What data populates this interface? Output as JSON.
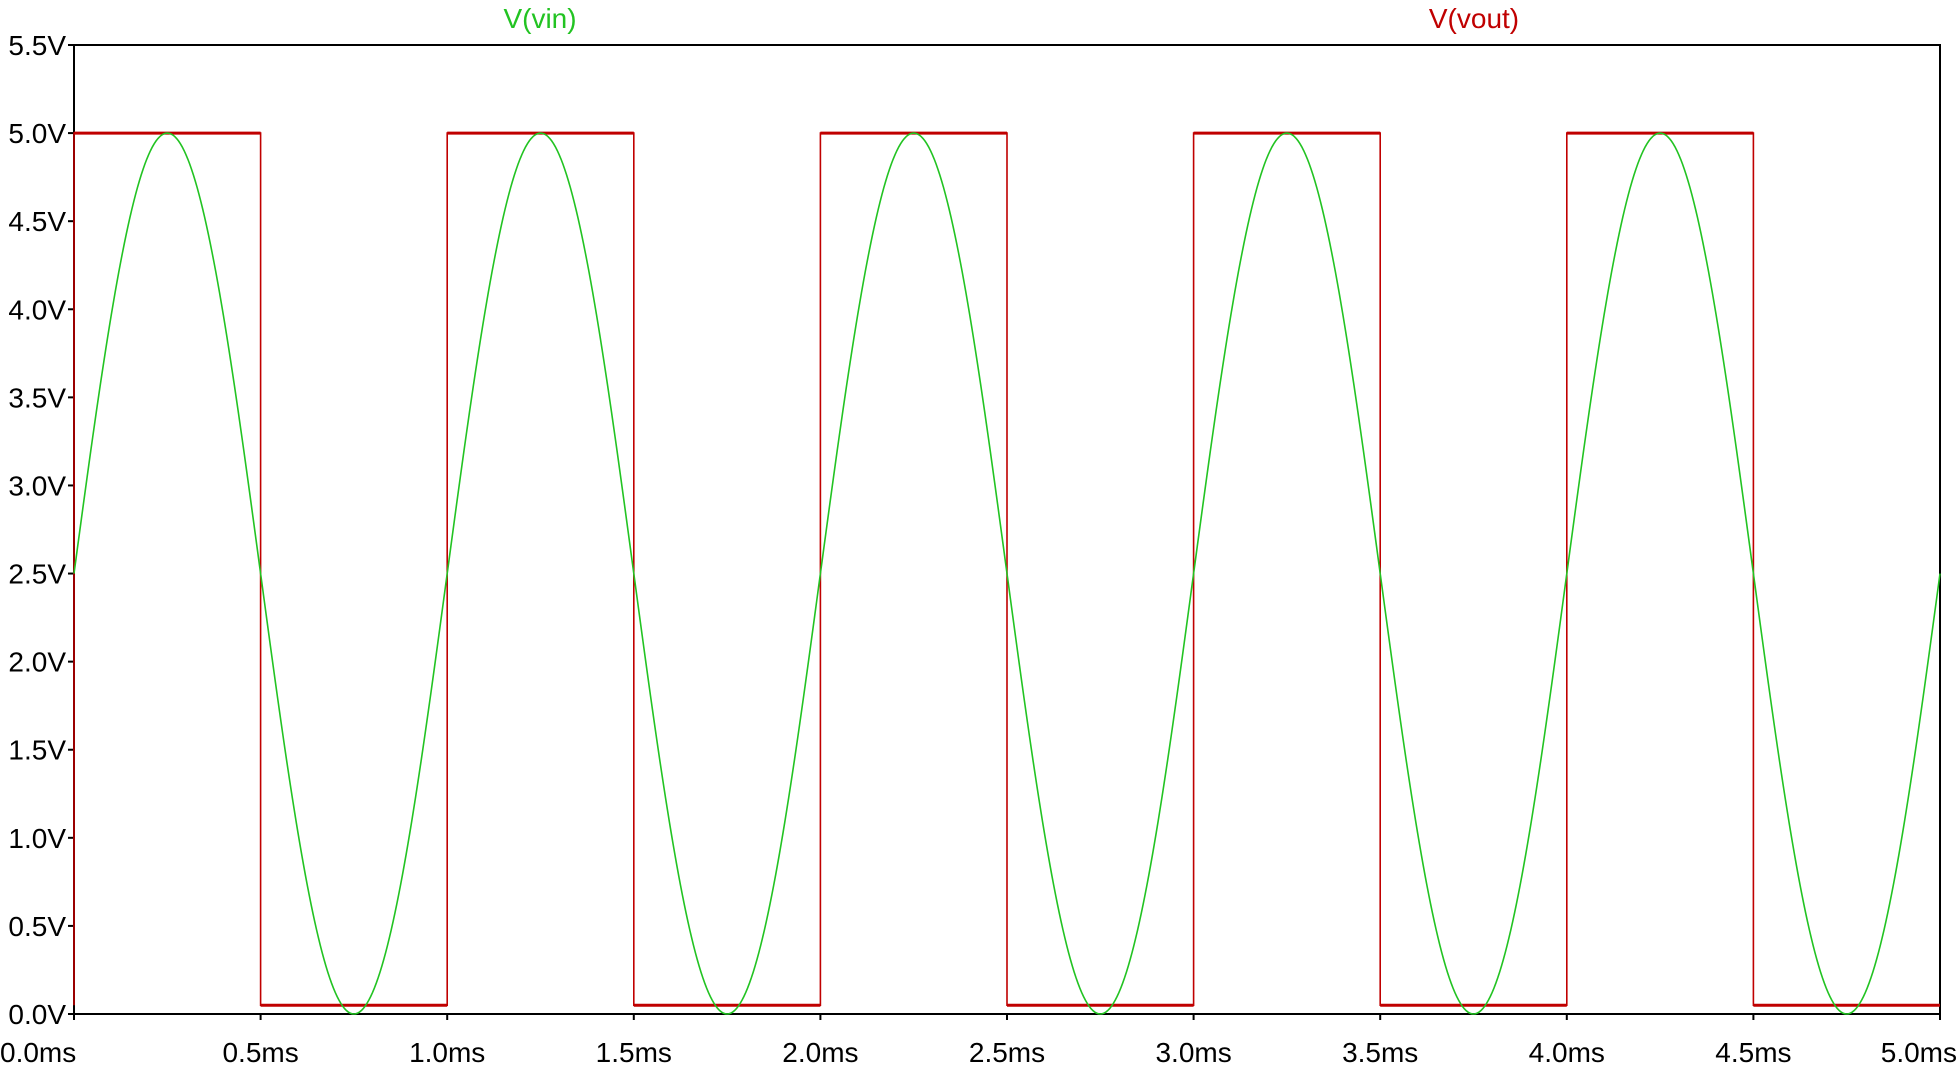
{
  "chart_data": {
    "type": "line",
    "title": "",
    "xlabel": "",
    "ylabel": "",
    "xlim": [
      0,
      5
    ],
    "ylim": [
      0,
      5.5
    ],
    "grid": false,
    "legend_placement": "top",
    "x_ticks": [
      "0.0ms",
      "0.5ms",
      "1.0ms",
      "1.5ms",
      "2.0ms",
      "2.5ms",
      "3.0ms",
      "3.5ms",
      "4.0ms",
      "4.5ms",
      "5.0ms"
    ],
    "y_ticks": [
      "0.0V",
      "0.5V",
      "1.0V",
      "1.5V",
      "2.0V",
      "2.5V",
      "3.0V",
      "3.5V",
      "4.0V",
      "4.5V",
      "5.0V",
      "5.5V"
    ],
    "series": [
      {
        "name": "V(vin)",
        "color": "#22c322",
        "kind": "sine",
        "offset_v": 2.5,
        "amplitude_v": 2.5,
        "frequency_khz": 1,
        "x_ms": [
          0,
          0.25,
          0.5,
          0.75,
          1.0,
          1.25,
          1.5,
          1.75,
          2.0,
          2.25,
          2.5,
          2.75,
          3.0,
          3.25,
          3.5,
          3.75,
          4.0,
          4.25,
          4.5,
          4.75,
          5.0
        ],
        "y_v": [
          2.5,
          5.0,
          2.5,
          0.0,
          2.5,
          5.0,
          2.5,
          0.0,
          2.5,
          5.0,
          2.5,
          0.0,
          2.5,
          5.0,
          2.5,
          0.0,
          2.5,
          5.0,
          2.5,
          0.0,
          2.5
        ]
      },
      {
        "name": "V(vout)",
        "color": "#c00000",
        "kind": "square",
        "x_ms": [
          0.0,
          0.0,
          0.5,
          0.5,
          1.0,
          1.0,
          1.5,
          1.5,
          2.0,
          2.0,
          2.5,
          2.5,
          3.0,
          3.0,
          3.5,
          3.5,
          4.0,
          4.0,
          4.5,
          4.5,
          5.0
        ],
        "y_v": [
          0.05,
          5.0,
          5.0,
          0.05,
          0.05,
          5.0,
          5.0,
          0.05,
          0.05,
          5.0,
          5.0,
          0.05,
          0.05,
          5.0,
          5.0,
          0.05,
          0.05,
          5.0,
          5.0,
          0.05,
          0.05
        ]
      }
    ]
  }
}
